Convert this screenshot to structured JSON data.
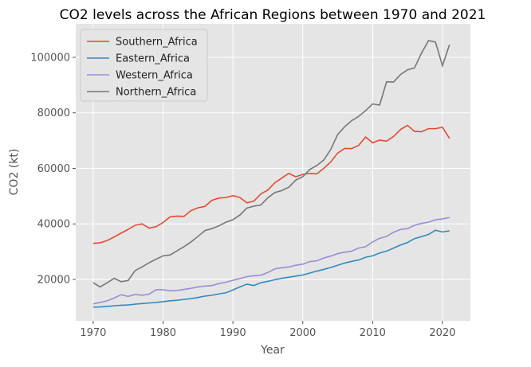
{
  "chart_data": {
    "type": "line",
    "title": "CO2 levels across the African Regions between 1970 and 2021",
    "x_label": "Year",
    "y_label": "CO2 (kt)",
    "x": [
      1970,
      1971,
      1972,
      1973,
      1974,
      1975,
      1976,
      1977,
      1978,
      1979,
      1980,
      1981,
      1982,
      1983,
      1984,
      1985,
      1986,
      1987,
      1988,
      1989,
      1990,
      1991,
      1992,
      1993,
      1994,
      1995,
      1996,
      1997,
      1998,
      1999,
      2000,
      2001,
      2002,
      2003,
      2004,
      2005,
      2006,
      2007,
      2008,
      2009,
      2010,
      2011,
      2012,
      2013,
      2014,
      2015,
      2016,
      2017,
      2018,
      2019,
      2020,
      2021
    ],
    "series": [
      {
        "name": "Southern_Africa",
        "color": "#E24A33",
        "values": [
          33000,
          33200,
          34000,
          35300,
          36700,
          38000,
          39500,
          40000,
          38500,
          39000,
          40500,
          42500,
          42800,
          42700,
          44800,
          45800,
          46300,
          48500,
          49300,
          49500,
          50200,
          49500,
          47600,
          48200,
          50800,
          52200,
          54800,
          56500,
          58200,
          57000,
          57800,
          58200,
          58000,
          60000,
          62300,
          65500,
          67200,
          67100,
          68300,
          71300,
          69200,
          70200,
          69800,
          71500,
          74000,
          75500,
          73300,
          73200,
          74300,
          74300,
          74800,
          70800
        ]
      },
      {
        "name": "Eastern_Africa",
        "color": "#348ABD",
        "values": [
          10000,
          10100,
          10300,
          10500,
          10700,
          10800,
          11100,
          11300,
          11500,
          11700,
          12000,
          12300,
          12500,
          12800,
          13100,
          13500,
          14000,
          14300,
          14800,
          15200,
          16200,
          17300,
          18300,
          17800,
          18800,
          19300,
          19900,
          20400,
          20800,
          21200,
          21600,
          22300,
          23000,
          23600,
          24300,
          25100,
          25900,
          26500,
          27000,
          28000,
          28500,
          29500,
          30200,
          31300,
          32400,
          33300,
          34700,
          35400,
          36200,
          37700,
          37100,
          37500
        ]
      },
      {
        "name": "Western_Africa",
        "color": "#988ED5",
        "values": [
          11200,
          11700,
          12300,
          13300,
          14500,
          13900,
          14600,
          14300,
          14700,
          16300,
          16300,
          15900,
          16000,
          16400,
          16800,
          17300,
          17600,
          17800,
          18500,
          19000,
          19700,
          20300,
          21000,
          21300,
          21500,
          22500,
          23800,
          24200,
          24500,
          25100,
          25500,
          26400,
          26700,
          27700,
          28400,
          29300,
          29800,
          30200,
          31300,
          31800,
          33500,
          34800,
          35500,
          37000,
          38000,
          38300,
          39500,
          40200,
          40600,
          41500,
          41800,
          42300
        ]
      },
      {
        "name": "Northern_Africa",
        "color": "#777777",
        "values": [
          18800,
          17300,
          18800,
          20400,
          19200,
          19600,
          23200,
          24500,
          26000,
          27300,
          28500,
          28800,
          30300,
          31800,
          33500,
          35500,
          37600,
          38300,
          39300,
          40600,
          41500,
          43200,
          45700,
          46400,
          46800,
          49400,
          51300,
          52000,
          53200,
          55800,
          57000,
          59600,
          61000,
          63000,
          66800,
          72200,
          75000,
          77200,
          78700,
          80800,
          83200,
          82800,
          91200,
          91100,
          93800,
          95500,
          96200,
          101500,
          106000,
          105500,
          97000,
          104500
        ]
      }
    ],
    "xlim": [
      1967.5,
      2024
    ],
    "ylim": [
      5090,
      112040
    ],
    "xticks": [
      1970,
      1980,
      1990,
      2000,
      2010,
      2020
    ],
    "yticks": [
      20000,
      40000,
      60000,
      80000,
      100000
    ],
    "grid": true,
    "legend": "upper-left"
  }
}
